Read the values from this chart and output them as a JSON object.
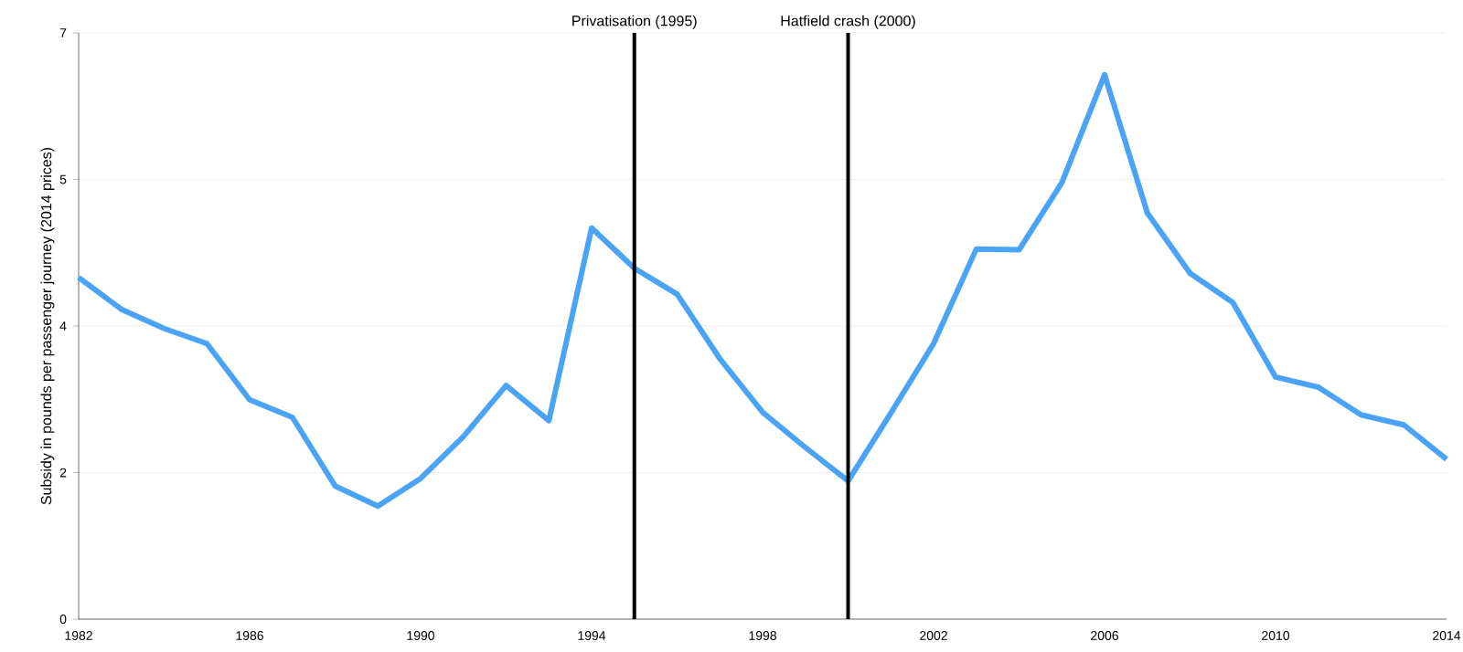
{
  "chart_data": {
    "type": "line",
    "ylabel": "Subsidy in pounds per passenger journey  (2014 prices)",
    "x": [
      1982,
      1983,
      1984,
      1985,
      1986,
      1987,
      1988,
      1989,
      1990,
      1991,
      1992,
      1993,
      1994,
      1995,
      1996,
      1997,
      1998,
      1999,
      2000,
      2001,
      2002,
      2003,
      2004,
      2005,
      2006,
      2007,
      2008,
      2009,
      2010,
      2011,
      2012,
      2013,
      2014
    ],
    "series": [
      {
        "color": "#4aa3f5",
        "values": [
          4.08,
          3.7,
          3.47,
          3.29,
          2.62,
          2.41,
          1.59,
          1.35,
          1.68,
          2.18,
          2.79,
          2.37,
          4.67,
          4.19,
          3.88,
          3.11,
          2.47,
          2.05,
          1.65,
          2.46,
          3.29,
          4.42,
          4.41,
          5.21,
          6.5,
          4.85,
          4.13,
          3.78,
          2.89,
          2.77,
          2.44,
          2.32,
          1.91
        ]
      }
    ],
    "xlim": [
      1982,
      2014
    ],
    "xticks": [
      1982,
      1986,
      1990,
      1994,
      1998,
      2002,
      2006,
      2010,
      2014
    ],
    "ylim": [
      0,
      7
    ],
    "yticks": [
      0,
      {
        "value": 1.75,
        "label": "2"
      },
      {
        "value": 3.5,
        "label": "4"
      },
      {
        "value": 5.25,
        "label": "5"
      },
      7
    ],
    "grid": "y",
    "marker": "none",
    "line_style": "solid",
    "ref_lines": [
      {
        "axis": "x",
        "value": 1995,
        "label": "Privatisation (1995)",
        "color": "#000000"
      },
      {
        "axis": "x",
        "value": 2000,
        "label": "Hatfield crash (2000)",
        "color": "#000000"
      }
    ]
  }
}
